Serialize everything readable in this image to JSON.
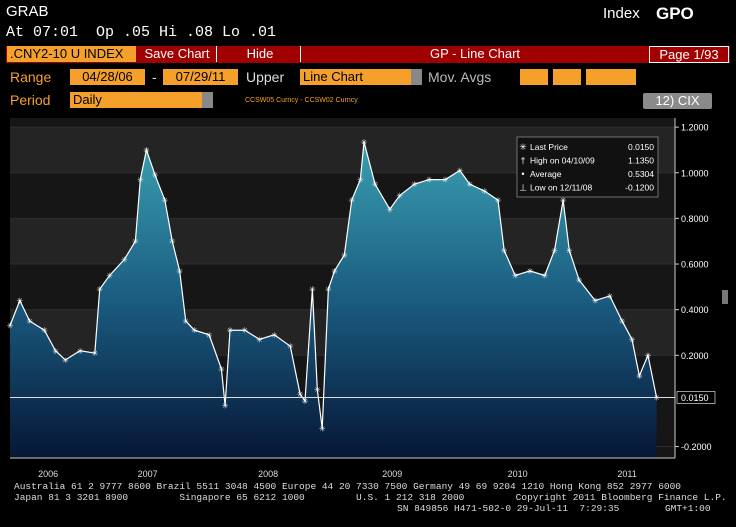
{
  "header": {
    "title": "GRAB",
    "index": "Index",
    "function": "GPO",
    "quote": "At 07:01  Op .05 Hi .08 Lo .01"
  },
  "toolbar": {
    "security": ".CNY2-10 U INDEX",
    "save": "Save Chart",
    "hide": "Hide",
    "name": "GP - Line Chart",
    "page": "Page 1/93"
  },
  "controls": {
    "range": "Range",
    "start": "04/28/06",
    "dash": "-",
    "end": "07/29/11",
    "upper": "Upper",
    "upper_value": "Line Chart",
    "mov_avgs": "Mov. Avgs",
    "period": "Period",
    "period_value": "Daily",
    "spread": "CCSW05 Curncy - CCSW02 Curncy",
    "cix": "12) CIX"
  },
  "chart_data": {
    "type": "line",
    "x": [
      2006.32,
      2006.4,
      2006.48,
      2006.6,
      2006.69,
      2006.77,
      2006.89,
      2007.01,
      2007.05,
      2007.13,
      2007.25,
      2007.34,
      2007.38,
      2007.43,
      2007.5,
      2007.58,
      2007.64,
      2007.7,
      2007.75,
      2007.82,
      2007.94,
      2008.04,
      2008.07,
      2008.11,
      2008.23,
      2008.35,
      2008.47,
      2008.6,
      2008.68,
      2008.72,
      2008.78,
      2008.82,
      2008.86,
      2008.91,
      2008.96,
      2009.04,
      2009.1,
      2009.17,
      2009.2,
      2009.29,
      2009.41,
      2009.49,
      2009.61,
      2009.73,
      2009.86,
      2009.98,
      2010.06,
      2010.18,
      2010.29,
      2010.34,
      2010.43,
      2010.55,
      2010.67,
      2010.75,
      2010.82,
      2010.87,
      2010.95,
      2011.08,
      2011.2,
      2011.3,
      2011.38,
      2011.44,
      2011.51,
      2011.58
    ],
    "series": [
      {
        "name": "Last Price",
        "color": "#ffffff",
        "values": [
          0.33,
          0.44,
          0.35,
          0.31,
          0.22,
          0.18,
          0.22,
          0.21,
          0.49,
          0.55,
          0.62,
          0.7,
          0.97,
          1.1,
          0.99,
          0.88,
          0.7,
          0.57,
          0.35,
          0.31,
          0.29,
          0.14,
          -0.02,
          0.31,
          0.31,
          0.27,
          0.29,
          0.24,
          0.03,
          0.0,
          0.49,
          0.05,
          -0.12,
          0.49,
          0.57,
          0.64,
          0.88,
          0.97,
          1.135,
          0.95,
          0.84,
          0.9,
          0.95,
          0.97,
          0.97,
          1.01,
          0.95,
          0.92,
          0.88,
          0.66,
          0.55,
          0.57,
          0.55,
          0.66,
          0.88,
          0.66,
          0.53,
          0.44,
          0.46,
          0.35,
          0.27,
          0.11,
          0.2,
          0.015
        ]
      }
    ],
    "last_label": "0.0150",
    "legend": [
      {
        "label": "Last Price",
        "value": "0.0150"
      },
      {
        "label": "High on 04/10/09",
        "value": "1.1350"
      },
      {
        "label": "Average",
        "value": "0.5304"
      },
      {
        "label": "Low on 12/11/08",
        "value": "-0.1200"
      }
    ],
    "xlim": [
      2006.32,
      2011.73
    ],
    "xticks": [
      {
        "value": 2006.63,
        "label": "2006"
      },
      {
        "value": 2007.44,
        "label": "2007"
      },
      {
        "value": 2008.42,
        "label": "2008"
      },
      {
        "value": 2009.43,
        "label": "2009"
      },
      {
        "value": 2010.45,
        "label": "2010"
      },
      {
        "value": 2011.34,
        "label": "2011"
      }
    ],
    "ylim": [
      -0.25,
      1.24
    ],
    "yticks": [
      {
        "value": 1.2,
        "label": "1.2000"
      },
      {
        "value": 1.0,
        "label": "1.0000"
      },
      {
        "value": 0.8,
        "label": "0.8000"
      },
      {
        "value": 0.6,
        "label": "0.6000"
      },
      {
        "value": 0.4,
        "label": "0.4000"
      },
      {
        "value": 0.2,
        "label": "0.2000"
      },
      {
        "value": -0.2,
        "label": "-0.2000"
      }
    ],
    "grid": true
  },
  "footer": [
    "Australia 61 2 9777 8600 Brazil 5511 3048 4500 Europe 44 20 7330 7500 Germany 49 69 9204 1210 Hong Kong 852 2977 6000",
    "Japan 81 3 3201 8900         Singapore 65 6212 1000         U.S. 1 212 318 2000         Copyright 2011 Bloomberg Finance L.P.",
    "SN 849856 H471-502-0 29-Jul-11  7:29:35        GMT+1:00"
  ]
}
